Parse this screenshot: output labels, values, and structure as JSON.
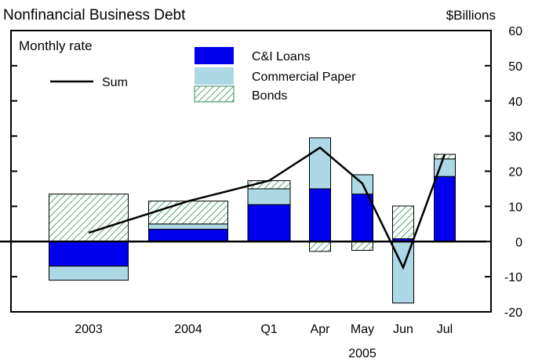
{
  "chart_data": {
    "type": "bar",
    "title": "Nonfinancial Business Debt",
    "subtitle": "Monthly rate",
    "ylabel": "$Billions",
    "xlabel": "",
    "ylim": [
      -20,
      60
    ],
    "yticks": [
      -20,
      -10,
      0,
      10,
      20,
      30,
      40,
      50,
      60
    ],
    "categories": [
      "2003",
      "2004",
      "Q1",
      "Apr",
      "May",
      "Jun",
      "Jul"
    ],
    "year_group_label": "2005",
    "year_group_categories": [
      "Q1",
      "Apr",
      "May",
      "Jun",
      "Jul"
    ],
    "stacked": true,
    "series": [
      {
        "name": "C&I Loans",
        "color": "#0000ee",
        "values": [
          -7,
          3.5,
          10.5,
          15,
          13.5,
          0.8,
          18.5
        ]
      },
      {
        "name": "Commercial Paper",
        "color": "#add8e6",
        "values": [
          -4,
          1.5,
          4.5,
          14.5,
          5.5,
          -17.5,
          5
        ]
      },
      {
        "name": "Bonds",
        "color": "#2e8b57",
        "pattern": "hatched",
        "values": [
          13.5,
          6.5,
          2.3,
          -2.8,
          -2.5,
          9.3,
          1.3
        ]
      }
    ],
    "line_series": {
      "name": "Sum",
      "color": "#000000",
      "values": [
        2.5,
        11.5,
        17.3,
        26.7,
        16.5,
        -7.4,
        24.8
      ]
    },
    "legend": {
      "placement": "top-center"
    },
    "grid": false
  }
}
